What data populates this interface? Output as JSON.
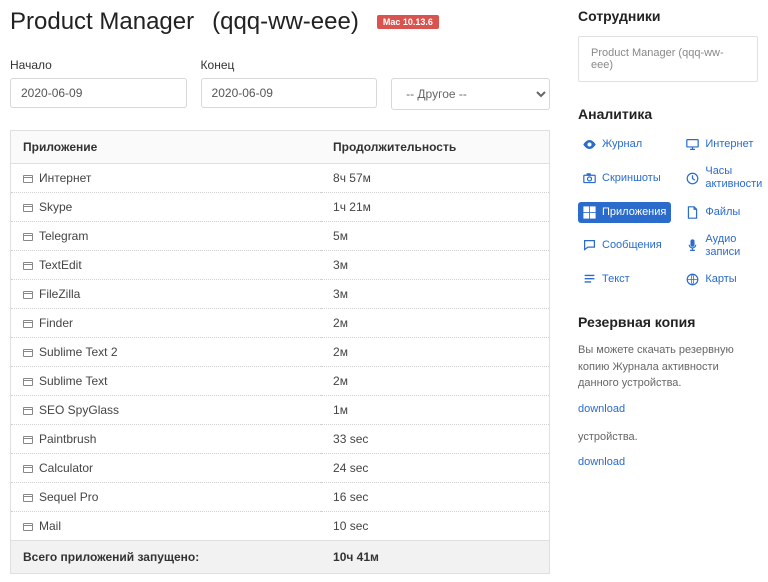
{
  "header": {
    "title": "Product Manager",
    "subtitle": "(qqq-ww-eee)",
    "os_badge": "Mac 10.13.6"
  },
  "filters": {
    "start_label": "Начало",
    "start_value": "2020-06-09",
    "end_label": "Конец",
    "end_value": "2020-06-09",
    "other_value": "-- Другое --"
  },
  "table": {
    "col_app": "Приложение",
    "col_duration": "Продолжительность",
    "rows": [
      {
        "app": "Интернет",
        "dur": "8ч 57м"
      },
      {
        "app": "Skype",
        "dur": "1ч 21м"
      },
      {
        "app": "Telegram",
        "dur": "5м"
      },
      {
        "app": "TextEdit",
        "dur": "3м"
      },
      {
        "app": "FileZilla",
        "dur": "3м"
      },
      {
        "app": "Finder",
        "dur": "2м"
      },
      {
        "app": "Sublime Text 2",
        "dur": "2м"
      },
      {
        "app": "Sublime Text",
        "dur": "2м"
      },
      {
        "app": "SEO SpyGlass",
        "dur": "1м"
      },
      {
        "app": "Paintbrush",
        "dur": "33 sec"
      },
      {
        "app": "Calculator",
        "dur": "24 sec"
      },
      {
        "app": "Sequel Pro",
        "dur": "16 sec"
      },
      {
        "app": "Mail",
        "dur": "10 sec"
      }
    ],
    "total_label": "Всего приложений запущено:",
    "total_value": "10ч 41м"
  },
  "sidebar": {
    "employees_h": "Сотрудники",
    "device": "Product Manager (qqq-ww-eee)",
    "analytics_h": "Аналитика",
    "analytics": [
      {
        "icon": "eye",
        "label": "Журнал",
        "active": false
      },
      {
        "icon": "monitor",
        "label": "Интернет",
        "active": false
      },
      {
        "icon": "camera",
        "label": "Скриншоты",
        "active": false
      },
      {
        "icon": "clock",
        "label": "Часы активности",
        "active": false
      },
      {
        "icon": "grid",
        "label": "Приложения",
        "active": true
      },
      {
        "icon": "file",
        "label": "Файлы",
        "active": false
      },
      {
        "icon": "chat",
        "label": "Сообщения",
        "active": false
      },
      {
        "icon": "mic",
        "label": "Аудио записи",
        "active": false
      },
      {
        "icon": "text",
        "label": "Текст",
        "active": false
      },
      {
        "icon": "globe",
        "label": "Карты",
        "active": false
      }
    ],
    "backup_h": "Резервная копия",
    "backup_text1": "Вы можете скачать резервную копию Журнала активности данного устройства.",
    "download": "download",
    "backup_text2": "устройства."
  },
  "colors": {
    "accent": "#2a6bcc",
    "badge": "#d9534f",
    "border": "#e0e0e0",
    "dotted": "#d0d0d0",
    "footer_bg": "#f2f2f2"
  }
}
